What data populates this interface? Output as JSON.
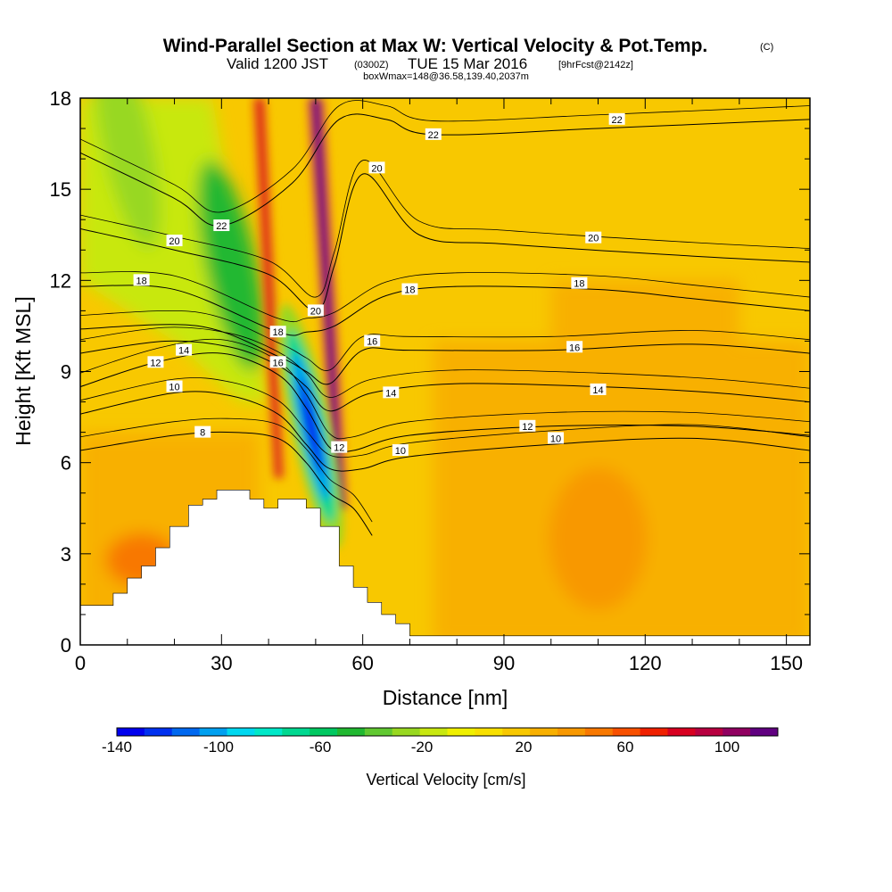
{
  "header": {
    "title_main": "Wind-Parallel Section at Max W: Vertical Velocity & Pot.Temp.",
    "title_mark": "(C)",
    "valid_prefix": "Valid 1200 JST",
    "valid_utc": "(0300Z)",
    "valid_suffix": "TUE 15 Mar 2016",
    "forecast": "[9hrFcst@2142z]",
    "boxwmax": "boxWmax=148@36.58,139.40,2037m"
  },
  "colors": {
    "frame": "#000000",
    "terrain": "#ffffff",
    "colorbar": [
      "#0000ee",
      "#0030f0",
      "#0068f0",
      "#00a0f0",
      "#00d8f0",
      "#00e8c8",
      "#00d890",
      "#00c860",
      "#20b830",
      "#60c830",
      "#98d820",
      "#c8e810",
      "#f0f000",
      "#f8e000",
      "#f8c800",
      "#f8b000",
      "#f89800",
      "#f87800",
      "#f85000",
      "#f02000",
      "#d80020",
      "#b80040",
      "#900060",
      "#600080"
    ]
  },
  "chart_data": {
    "type": "heatmap",
    "x": {
      "title": "Distance [nm]",
      "min": 0,
      "max": 155,
      "ticks": [
        0,
        30,
        60,
        90,
        120,
        150
      ]
    },
    "y": {
      "title": "Height [Kft MSL]",
      "min": 0,
      "max": 18,
      "ticks": [
        0,
        3,
        6,
        9,
        12,
        15,
        18
      ]
    },
    "colorbar": {
      "title": "Vertical Velocity [cm/s]",
      "min": -140,
      "max": 120,
      "step": 10,
      "labels": [
        -140,
        -100,
        -60,
        -20,
        20,
        60,
        100
      ]
    },
    "updrafts": [
      {
        "x_bottom": 55,
        "y_bottom": 4.5,
        "x_top": 50,
        "y_top": 18,
        "peak": 110
      },
      {
        "x_bottom": 42,
        "y_bottom": 5.5,
        "x_top": 38,
        "y_top": 18,
        "peak": 60
      }
    ],
    "downdrafts": [
      {
        "x": 49,
        "y": 7.2,
        "peak": -140
      },
      {
        "x": 32,
        "y": 12.5,
        "peak": -60
      },
      {
        "x": 10,
        "y": 16.5,
        "peak": -40
      }
    ],
    "terrain_profile": [
      [
        0,
        1.3
      ],
      [
        6,
        1.3
      ],
      [
        7,
        1.3
      ],
      [
        7,
        1.7
      ],
      [
        10,
        1.7
      ],
      [
        10,
        2.2
      ],
      [
        13,
        2.2
      ],
      [
        13,
        2.6
      ],
      [
        16,
        2.6
      ],
      [
        16,
        3.2
      ],
      [
        19,
        3.2
      ],
      [
        19,
        3.9
      ],
      [
        23,
        3.9
      ],
      [
        23,
        4.6
      ],
      [
        26,
        4.6
      ],
      [
        26,
        4.8
      ],
      [
        29,
        4.8
      ],
      [
        29,
        5.1
      ],
      [
        36,
        5.1
      ],
      [
        36,
        4.8
      ],
      [
        39,
        4.8
      ],
      [
        39,
        4.5
      ],
      [
        42,
        4.5
      ],
      [
        42,
        4.8
      ],
      [
        48,
        4.8
      ],
      [
        48,
        4.5
      ],
      [
        51,
        4.5
      ],
      [
        51,
        3.9
      ],
      [
        55,
        3.9
      ],
      [
        55,
        2.6
      ],
      [
        58,
        2.6
      ],
      [
        58,
        1.9
      ],
      [
        61,
        1.9
      ],
      [
        61,
        1.4
      ],
      [
        64,
        1.4
      ],
      [
        64,
        1.0
      ],
      [
        67,
        1.0
      ],
      [
        67,
        0.7
      ],
      [
        70,
        0.7
      ],
      [
        70,
        0.3
      ],
      [
        72,
        0.3
      ],
      [
        155,
        0.3
      ]
    ],
    "theta_contours": [
      {
        "value": 8,
        "points": [
          [
            0,
            6.4
          ],
          [
            20,
            6.9
          ],
          [
            32,
            7.0
          ],
          [
            42,
            6.8
          ],
          [
            48,
            6.0
          ],
          [
            53,
            5.0
          ],
          [
            58,
            4.5
          ],
          [
            62,
            3.6
          ]
        ],
        "labels": [
          [
            26,
            7.0
          ]
        ]
      },
      {
        "value": 10,
        "points": [
          [
            0,
            7.6
          ],
          [
            20,
            8.3
          ],
          [
            32,
            8.2
          ],
          [
            42,
            7.6
          ],
          [
            48,
            6.6
          ],
          [
            53,
            5.8
          ],
          [
            60,
            5.8
          ],
          [
            70,
            6.2
          ],
          [
            100,
            6.6
          ],
          [
            130,
            6.8
          ],
          [
            155,
            6.4
          ]
        ],
        "labels": [
          [
            20,
            8.5
          ],
          [
            68,
            6.4
          ],
          [
            101,
            6.8
          ]
        ]
      },
      {
        "value": 12,
        "points": [
          [
            0,
            8.5
          ],
          [
            16,
            9.3
          ],
          [
            30,
            9.6
          ],
          [
            42,
            8.9
          ],
          [
            48,
            7.8
          ],
          [
            53,
            6.5
          ],
          [
            58,
            6.4
          ],
          [
            70,
            6.9
          ],
          [
            100,
            7.2
          ],
          [
            130,
            7.2
          ],
          [
            155,
            6.9
          ]
        ],
        "labels": [
          [
            16,
            9.3
          ],
          [
            55,
            6.5
          ],
          [
            95,
            7.2
          ]
        ]
      },
      {
        "value": 14,
        "points": [
          [
            0,
            9.6
          ],
          [
            18,
            10.0
          ],
          [
            32,
            9.8
          ],
          [
            42,
            9.2
          ],
          [
            48,
            8.5
          ],
          [
            53,
            7.7
          ],
          [
            62,
            8.3
          ],
          [
            80,
            8.6
          ],
          [
            110,
            8.5
          ],
          [
            135,
            8.3
          ],
          [
            155,
            8.0
          ]
        ],
        "labels": [
          [
            22,
            9.7
          ],
          [
            66,
            8.3
          ],
          [
            110,
            8.4
          ]
        ]
      },
      {
        "value": 16,
        "points": [
          [
            0,
            10.4
          ],
          [
            25,
            10.5
          ],
          [
            42,
            9.5
          ],
          [
            48,
            9.0
          ],
          [
            53,
            8.6
          ],
          [
            60,
            9.7
          ],
          [
            70,
            9.7
          ],
          [
            100,
            9.7
          ],
          [
            130,
            9.9
          ],
          [
            155,
            9.6
          ]
        ],
        "labels": [
          [
            42,
            9.3
          ],
          [
            62,
            10.0
          ],
          [
            105,
            9.8
          ]
        ]
      },
      {
        "value": 18,
        "points": [
          [
            0,
            11.8
          ],
          [
            20,
            11.7
          ],
          [
            42,
            10.3
          ],
          [
            48,
            10.3
          ],
          [
            54,
            10.5
          ],
          [
            65,
            11.5
          ],
          [
            80,
            11.8
          ],
          [
            110,
            11.7
          ],
          [
            130,
            11.4
          ],
          [
            155,
            11.0
          ]
        ],
        "labels": [
          [
            13,
            12.0
          ],
          [
            42,
            10.3
          ],
          [
            70,
            11.7
          ],
          [
            106,
            11.9
          ]
        ]
      },
      {
        "value": 20,
        "points": [
          [
            0,
            13.7
          ],
          [
            20,
            13.0
          ],
          [
            40,
            12.2
          ],
          [
            50,
            11.0
          ],
          [
            54,
            12.5
          ],
          [
            60,
            15.5
          ],
          [
            72,
            13.5
          ],
          [
            90,
            13.2
          ],
          [
            130,
            12.8
          ],
          [
            155,
            12.6
          ]
        ],
        "labels": [
          [
            20,
            13.3
          ],
          [
            50,
            11.0
          ],
          [
            63,
            15.7
          ],
          [
            109,
            13.4
          ]
        ]
      },
      {
        "value": 22,
        "points": [
          [
            0,
            16.2
          ],
          [
            20,
            14.7
          ],
          [
            30,
            13.8
          ],
          [
            45,
            15.2
          ],
          [
            55,
            17.3
          ],
          [
            65,
            17.3
          ],
          [
            75,
            16.8
          ],
          [
            110,
            17.0
          ],
          [
            155,
            17.3
          ]
        ],
        "labels": [
          [
            30,
            13.8
          ],
          [
            75,
            16.8
          ],
          [
            114,
            17.3
          ]
        ]
      }
    ]
  }
}
